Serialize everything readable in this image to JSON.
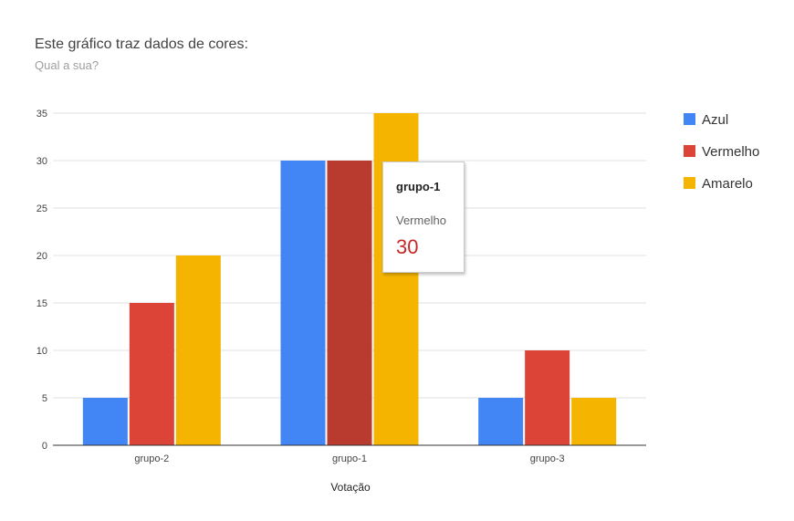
{
  "chart_data": {
    "type": "bar",
    "title": "Este gráfico traz dados de cores:",
    "subtitle": "Qual a sua?",
    "xlabel": "Votação",
    "ylabel": "",
    "categories": [
      "grupo-2",
      "grupo-1",
      "grupo-3"
    ],
    "series": [
      {
        "name": "Azul",
        "color": "#4285f4",
        "values": [
          5,
          30,
          5
        ]
      },
      {
        "name": "Vermelho",
        "color": "#db4437",
        "values": [
          15,
          30,
          10
        ]
      },
      {
        "name": "Amarelo",
        "color": "#f4b400",
        "values": [
          20,
          35,
          5
        ]
      }
    ],
    "ylim": [
      0,
      35
    ],
    "yticks": [
      0,
      5,
      10,
      15,
      20,
      25,
      30,
      35
    ],
    "grid": true,
    "legend_position": "right",
    "highlight": {
      "category_index": 1,
      "series_index": 1,
      "color": "#b93a2e"
    }
  },
  "tooltip": {
    "category": "grupo-1",
    "series": "Vermelho",
    "value": "30",
    "value_color": "#c62828"
  }
}
